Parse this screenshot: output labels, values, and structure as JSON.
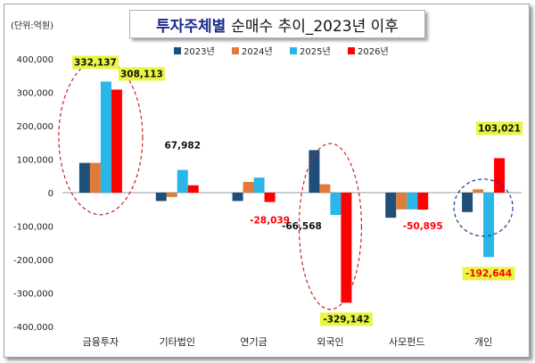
{
  "title": {
    "main": "투자주체별",
    "sub": "순매수 추이_2023년 이후"
  },
  "unit_label": "(단위:억원)",
  "chart_data": {
    "type": "bar",
    "categories": [
      "금융투자",
      "기타법인",
      "연기금",
      "외국인",
      "사모펀드",
      "개인"
    ],
    "series": [
      {
        "name": "2023년",
        "color": "#1f4e79",
        "values": [
          89000,
          -25000,
          -25000,
          127000,
          -75000,
          -58000
        ]
      },
      {
        "name": "2024년",
        "color": "#e07b39",
        "values": [
          89000,
          -13000,
          32000,
          25000,
          -50000,
          10000
        ]
      },
      {
        "name": "2025년",
        "color": "#29b6e8",
        "values": [
          332137,
          67982,
          45000,
          -66568,
          -50000,
          -192644
        ]
      },
      {
        "name": "2026년",
        "color": "#ff0000",
        "values": [
          308113,
          22000,
          -28039,
          -329142,
          -50895,
          103021
        ]
      }
    ],
    "ylim": [
      -400000,
      400000
    ],
    "yticks": [
      "400,000",
      "300,000",
      "200,000",
      "100,000",
      "0",
      "-100,000",
      "-200,000",
      "-300,000",
      "-400,000"
    ],
    "legend_position": "top",
    "annotations": [
      {
        "text": "332,137",
        "series": 2,
        "category": 0,
        "highlight": true,
        "color": "#111111"
      },
      {
        "text": "308,113",
        "series": 3,
        "category": 0,
        "highlight": true,
        "color": "#111111"
      },
      {
        "text": "67,982",
        "series": 2,
        "category": 1,
        "highlight": false,
        "color": "#111111"
      },
      {
        "text": "-28,039",
        "series": 3,
        "category": 2,
        "highlight": false,
        "color": "#ff0000"
      },
      {
        "text": "-66,568",
        "series": 2,
        "category": 3,
        "highlight": false,
        "color": "#111111"
      },
      {
        "text": "-329,142",
        "series": 3,
        "category": 3,
        "highlight": true,
        "color": "#111111"
      },
      {
        "text": "-50,895",
        "series": 3,
        "category": 4,
        "highlight": false,
        "color": "#ff0000"
      },
      {
        "text": "103,021",
        "series": 3,
        "category": 5,
        "highlight": true,
        "color": "#111111"
      },
      {
        "text": "-192,644",
        "series": 2,
        "category": 5,
        "highlight": true,
        "color": "#ff0000"
      }
    ],
    "highlight_color": "#e8f542",
    "ellipses": [
      {
        "category": 0,
        "color": "#cc2222"
      },
      {
        "category": 3,
        "color": "#cc2222"
      },
      {
        "category": 5,
        "color": "#22349a"
      }
    ]
  }
}
